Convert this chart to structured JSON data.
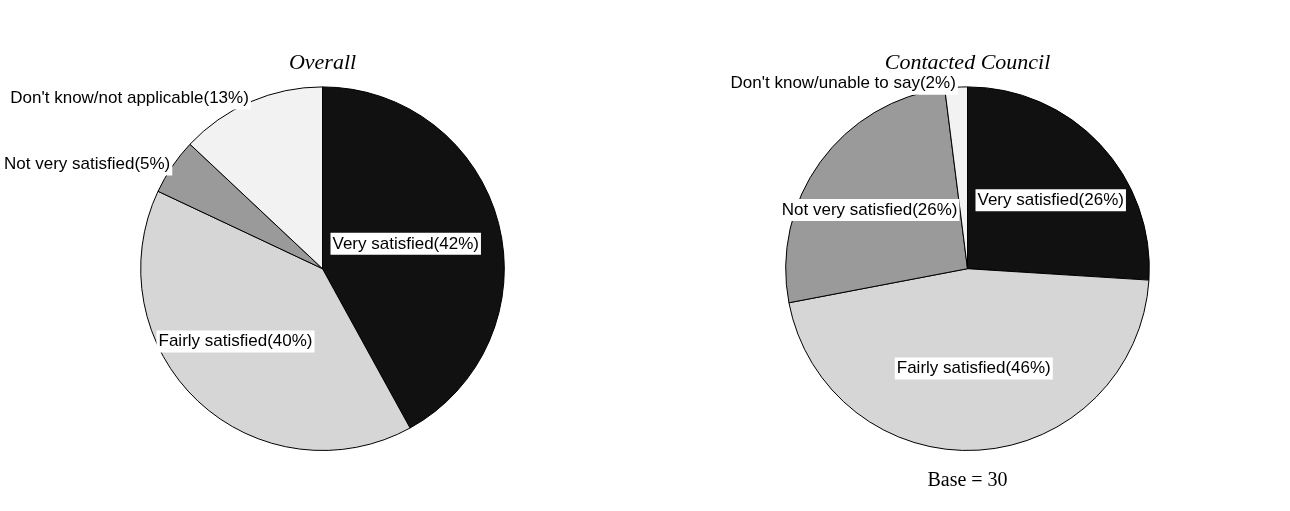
{
  "chart_data": [
    {
      "type": "pie",
      "title": "Overall",
      "categories": [
        "Very satisfied",
        "Fairly satisfied",
        "Not very satisfied",
        "Don't know/not applicable"
      ],
      "values": [
        42,
        40,
        5,
        13
      ],
      "value_labels": [
        "(42%)",
        "(40%)",
        "(5%)",
        "(13%)"
      ],
      "colors": [
        "#111111",
        "#d6d6d6",
        "#9a9a9a",
        "#f2f2f2"
      ],
      "legend": false
    },
    {
      "type": "pie",
      "title": "Contacted Council",
      "categories": [
        "Very satisfied",
        "Fairly satisfied",
        "Not very satisfied",
        "Don't know/unable to say"
      ],
      "values": [
        26,
        46,
        26,
        2
      ],
      "value_labels": [
        "(26%)",
        "(46%)",
        "(26%)",
        "(2%)"
      ],
      "colors": [
        "#111111",
        "#d6d6d6",
        "#9a9a9a",
        "#f2f2f2"
      ],
      "legend": false,
      "annotations": [
        "Base = 30"
      ]
    }
  ]
}
